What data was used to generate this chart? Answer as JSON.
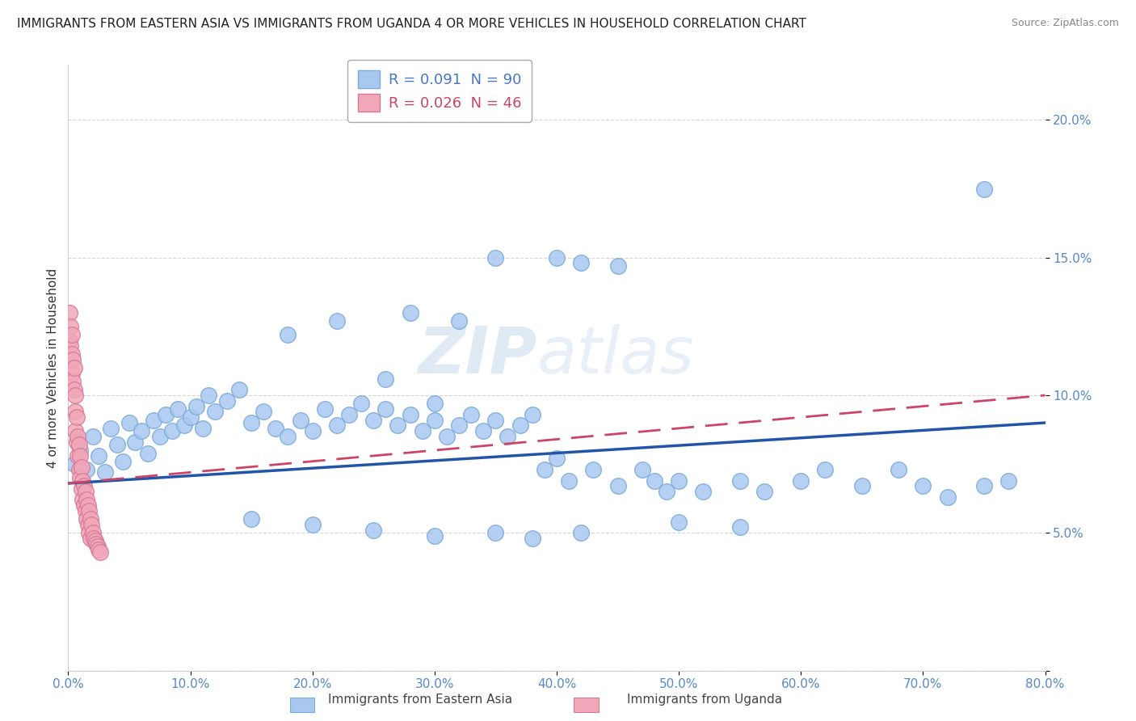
{
  "title": "IMMIGRANTS FROM EASTERN ASIA VS IMMIGRANTS FROM UGANDA 4 OR MORE VEHICLES IN HOUSEHOLD CORRELATION CHART",
  "source": "Source: ZipAtlas.com",
  "ylabel": "4 or more Vehicles in Household",
  "x_lim": [
    0.0,
    0.8
  ],
  "y_lim": [
    0.0,
    0.22
  ],
  "x_ticks": [
    0.0,
    0.1,
    0.2,
    0.3,
    0.4,
    0.5,
    0.6,
    0.7,
    0.8
  ],
  "x_tick_labels": [
    "0.0%",
    "10.0%",
    "20.0%",
    "30.0%",
    "40.0%",
    "50.0%",
    "60.0%",
    "70.0%",
    "80.0%"
  ],
  "y_ticks": [
    0.0,
    0.05,
    0.1,
    0.15,
    0.2
  ],
  "y_tick_labels": [
    "",
    "5.0%",
    "10.0%",
    "15.0%",
    "20.0%"
  ],
  "watermark": "ZIPatlas",
  "blue_color": "#a8c8f0",
  "blue_edge_color": "#7aaad8",
  "pink_color": "#f0a8b8",
  "pink_edge_color": "#d87898",
  "blue_line_color": "#2255aa",
  "pink_line_color": "#cc4466",
  "legend_blue_label": "R = 0.091  N = 90",
  "legend_pink_label": "R = 0.026  N = 46",
  "legend_R_blue": "0.091",
  "legend_N_blue": "90",
  "legend_R_pink": "0.026",
  "legend_N_pink": "46",
  "tick_color": "#5588cc",
  "title_color": "#222222",
  "ylabel_color": "#333333",
  "blue_line_y0": 0.068,
  "blue_line_y1": 0.09,
  "pink_line_y0": 0.068,
  "pink_line_y1": 0.1,
  "blue_pts_x": [
    0.005,
    0.01,
    0.015,
    0.02,
    0.025,
    0.03,
    0.035,
    0.04,
    0.045,
    0.05,
    0.055,
    0.06,
    0.065,
    0.07,
    0.075,
    0.08,
    0.085,
    0.09,
    0.095,
    0.1,
    0.105,
    0.11,
    0.115,
    0.12,
    0.13,
    0.14,
    0.15,
    0.16,
    0.17,
    0.18,
    0.19,
    0.2,
    0.21,
    0.22,
    0.23,
    0.24,
    0.25,
    0.26,
    0.27,
    0.28,
    0.29,
    0.3,
    0.31,
    0.32,
    0.33,
    0.34,
    0.35,
    0.36,
    0.37,
    0.38,
    0.39,
    0.4,
    0.41,
    0.43,
    0.45,
    0.47,
    0.48,
    0.49,
    0.5,
    0.52,
    0.55,
    0.57,
    0.6,
    0.62,
    0.65,
    0.68,
    0.7,
    0.72,
    0.75,
    0.77,
    0.22,
    0.26,
    0.3,
    0.35,
    0.4,
    0.42,
    0.45,
    0.28,
    0.32,
    0.18,
    0.15,
    0.2,
    0.25,
    0.3,
    0.35,
    0.38,
    0.42,
    0.5,
    0.55,
    0.75
  ],
  "blue_pts_y": [
    0.075,
    0.08,
    0.073,
    0.085,
    0.078,
    0.072,
    0.088,
    0.082,
    0.076,
    0.09,
    0.083,
    0.087,
    0.079,
    0.091,
    0.085,
    0.093,
    0.087,
    0.095,
    0.089,
    0.092,
    0.096,
    0.088,
    0.1,
    0.094,
    0.098,
    0.102,
    0.09,
    0.094,
    0.088,
    0.085,
    0.091,
    0.087,
    0.095,
    0.089,
    0.093,
    0.097,
    0.091,
    0.095,
    0.089,
    0.093,
    0.087,
    0.091,
    0.085,
    0.089,
    0.093,
    0.087,
    0.091,
    0.085,
    0.089,
    0.093,
    0.073,
    0.077,
    0.069,
    0.073,
    0.067,
    0.073,
    0.069,
    0.065,
    0.069,
    0.065,
    0.069,
    0.065,
    0.069,
    0.073,
    0.067,
    0.073,
    0.067,
    0.063,
    0.067,
    0.069,
    0.127,
    0.106,
    0.097,
    0.15,
    0.15,
    0.148,
    0.147,
    0.13,
    0.127,
    0.122,
    0.055,
    0.053,
    0.051,
    0.049,
    0.05,
    0.048,
    0.05,
    0.054,
    0.052,
    0.175
  ],
  "pink_pts_x": [
    0.001,
    0.001,
    0.002,
    0.002,
    0.003,
    0.003,
    0.003,
    0.004,
    0.004,
    0.005,
    0.005,
    0.006,
    0.006,
    0.006,
    0.007,
    0.007,
    0.008,
    0.008,
    0.009,
    0.009,
    0.01,
    0.01,
    0.011,
    0.011,
    0.012,
    0.012,
    0.013,
    0.013,
    0.014,
    0.014,
    0.015,
    0.015,
    0.016,
    0.016,
    0.017,
    0.017,
    0.018,
    0.018,
    0.019,
    0.02,
    0.021,
    0.022,
    0.023,
    0.024,
    0.025,
    0.026
  ],
  "pink_pts_y": [
    0.13,
    0.12,
    0.125,
    0.118,
    0.122,
    0.115,
    0.108,
    0.113,
    0.105,
    0.11,
    0.102,
    0.1,
    0.094,
    0.087,
    0.092,
    0.083,
    0.085,
    0.078,
    0.082,
    0.073,
    0.078,
    0.07,
    0.074,
    0.066,
    0.069,
    0.062,
    0.067,
    0.06,
    0.065,
    0.058,
    0.062,
    0.055,
    0.06,
    0.053,
    0.058,
    0.05,
    0.055,
    0.048,
    0.053,
    0.05,
    0.048,
    0.047,
    0.046,
    0.045,
    0.044,
    0.043
  ]
}
